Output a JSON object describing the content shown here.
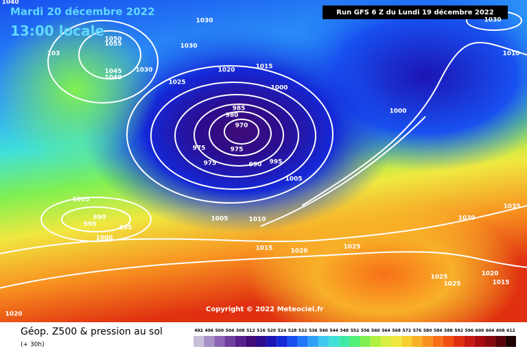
{
  "header": {
    "date": "Mardi 20 décembre 2022",
    "time": "13:00 locale",
    "run": "Run GFS 6 Z du Lundi 19 décembre 2022"
  },
  "copyright": "Copyright © 2022 Meteociel.fr",
  "footer": {
    "title": "Géop. Z500 & pression au sol",
    "lead": "(+ 30h)"
  },
  "isobar_labels": [
    "1040",
    "1030",
    "1050",
    "1055",
    "103",
    "1030",
    "1045",
    "1040",
    "1030",
    "1020",
    "1015",
    "1025",
    "1000",
    "985",
    "980",
    "970",
    "975",
    "975",
    "975",
    "990",
    "995",
    "1005",
    "1000",
    "1010",
    "1030",
    "1005",
    "990",
    "995",
    "995",
    "1000",
    "1005",
    "1010",
    "1015",
    "1020",
    "1025",
    "1030",
    "1035",
    "1025",
    "1025",
    "1020",
    "1015",
    "1020"
  ],
  "scale": {
    "labels": [
      492,
      496,
      500,
      504,
      508,
      512,
      516,
      520,
      524,
      528,
      532,
      536,
      540,
      544,
      548,
      552,
      556,
      560,
      564,
      568,
      572,
      576,
      580,
      584,
      588,
      592,
      596,
      600,
      604,
      608,
      612
    ],
    "colors": [
      "#c8c0d8",
      "#a890c8",
      "#8c64b4",
      "#7040a0",
      "#58208c",
      "#400c78",
      "#2c0c8c",
      "#1c14b4",
      "#1428d8",
      "#1850f0",
      "#2078f8",
      "#30a0f8",
      "#40c8f0",
      "#40e0d8",
      "#40e8a8",
      "#50f078",
      "#80f050",
      "#b0f040",
      "#d8f040",
      "#f0e840",
      "#f8d030",
      "#f8b028",
      "#f89020",
      "#f87018",
      "#f05010",
      "#e03010",
      "#c81810",
      "#a80c10",
      "#880810",
      "#580408",
      "#200000"
    ]
  }
}
